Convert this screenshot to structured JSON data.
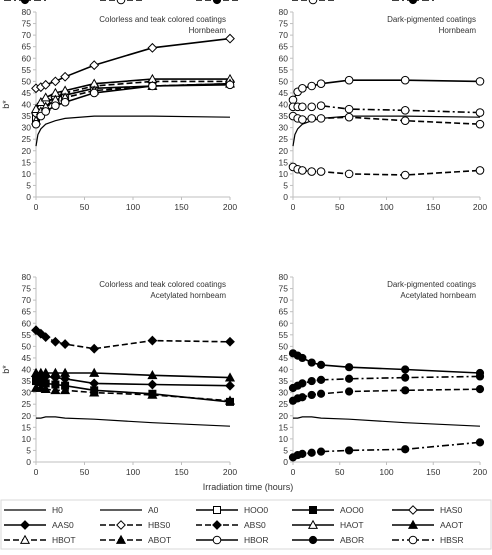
{
  "chart_data": [
    {
      "type": "line",
      "title": "Colorless and teak colored coatings",
      "subtitle": "Hornbeam",
      "ylabel": "b*",
      "xlabel": "",
      "xlim": [
        0,
        200
      ],
      "ylim": [
        0,
        80
      ],
      "x_ticks": [
        0,
        50,
        100,
        150,
        200
      ],
      "y_ticks": [
        0,
        5,
        10,
        15,
        20,
        25,
        30,
        35,
        40,
        45,
        50,
        55,
        60,
        65,
        70,
        75,
        80
      ],
      "series": [
        {
          "name": "H0",
          "x": [
            0,
            2,
            5,
            10,
            20,
            30,
            60,
            120,
            200
          ],
          "values": [
            22,
            27,
            29.5,
            31.5,
            33,
            34,
            35,
            35,
            34.5
          ]
        },
        {
          "name": "HOO0",
          "x": [
            0,
            5,
            10,
            20,
            30,
            60,
            120,
            200
          ],
          "values": [
            34,
            39,
            41,
            43,
            44,
            47,
            48,
            49
          ]
        },
        {
          "name": "HAS0",
          "x": [
            0,
            5,
            10,
            20,
            30,
            60,
            120,
            200
          ],
          "values": [
            47,
            47.5,
            48.5,
            50,
            52,
            57,
            64.5,
            68.5
          ]
        },
        {
          "name": "HBS0",
          "x": [
            0,
            5,
            10,
            20,
            30,
            60,
            120,
            200
          ],
          "values": [
            36,
            39,
            41,
            43,
            45,
            48,
            50,
            50
          ]
        },
        {
          "name": "HAOT",
          "x": [
            0,
            5,
            10,
            20,
            30,
            60,
            120,
            200
          ],
          "values": [
            38,
            41,
            43,
            45,
            46,
            49,
            51,
            51
          ]
        },
        {
          "name": "HBOT",
          "x": [
            0,
            5,
            10,
            20,
            30,
            60,
            120,
            200
          ],
          "values": [
            33,
            37,
            39,
            42,
            43,
            46,
            48,
            49
          ]
        },
        {
          "name": "HBOR",
          "x": [
            0,
            5,
            10,
            20,
            30,
            60,
            120,
            200
          ],
          "values": [
            31.5,
            35,
            37,
            39.5,
            41,
            45,
            48,
            48.5
          ]
        }
      ]
    },
    {
      "type": "line",
      "title": "Dark-pigmented coatings",
      "subtitle": "Hornbeam",
      "ylabel": "",
      "xlabel": "",
      "xlim": [
        0,
        200
      ],
      "ylim": [
        0,
        80
      ],
      "x_ticks": [
        0,
        50,
        100,
        150,
        200
      ],
      "y_ticks": [
        0,
        5,
        10,
        15,
        20,
        25,
        30,
        35,
        40,
        45,
        50,
        55,
        60,
        65,
        70,
        75,
        80
      ],
      "series": [
        {
          "name": "H0",
          "x": [
            0,
            2,
            5,
            10,
            20,
            30,
            60,
            120,
            200
          ],
          "values": [
            22,
            27,
            29.5,
            31.5,
            33,
            34,
            35,
            35,
            34.5
          ]
        },
        {
          "name": "HBOR",
          "x": [
            0,
            5,
            10,
            20,
            30,
            60,
            120,
            200
          ],
          "values": [
            42,
            45.5,
            47,
            48,
            49,
            50.5,
            50.5,
            50
          ]
        },
        {
          "name": "HBSR",
          "x": [
            0,
            5,
            10,
            20,
            30,
            60,
            120,
            200
          ],
          "values": [
            39,
            39,
            39,
            39,
            39.5,
            38,
            37.5,
            36.5
          ]
        },
        {
          "name": "HASU",
          "x": [
            0,
            5,
            10,
            20,
            30,
            60,
            120,
            200
          ],
          "values": [
            35,
            34,
            33.5,
            34,
            34,
            34.5,
            33,
            31.5
          ]
        },
        {
          "name": "HBSP",
          "x": [
            0,
            5,
            10,
            20,
            30,
            60,
            120,
            200
          ],
          "values": [
            13,
            12,
            11.5,
            11,
            11,
            10,
            9.5,
            11.5
          ]
        }
      ]
    },
    {
      "type": "line",
      "title": "Colorless and teak colored coatings",
      "subtitle": "Acetylated hornbeam",
      "ylabel": "b*",
      "xlabel": "",
      "xlim": [
        0,
        200
      ],
      "ylim": [
        0,
        80
      ],
      "x_ticks": [
        0,
        50,
        100,
        150,
        200
      ],
      "y_ticks": [
        0,
        5,
        10,
        15,
        20,
        25,
        30,
        35,
        40,
        45,
        50,
        55,
        60,
        65,
        70,
        75,
        80
      ],
      "series": [
        {
          "name": "A0",
          "x": [
            0,
            5,
            10,
            20,
            30,
            60,
            120,
            200
          ],
          "values": [
            19,
            19,
            19.5,
            19.5,
            19,
            18.5,
            17,
            15.5
          ]
        },
        {
          "name": "ABS0",
          "x": [
            0,
            5,
            10,
            20,
            30,
            60,
            120,
            200
          ],
          "values": [
            57,
            55.5,
            54,
            52,
            51,
            49,
            52.5,
            52
          ]
        },
        {
          "name": "AAOT",
          "x": [
            0,
            5,
            10,
            20,
            30,
            60,
            120,
            200
          ],
          "values": [
            38.5,
            38.5,
            38.5,
            38.5,
            38.5,
            38.5,
            37.5,
            36.5
          ]
        },
        {
          "name": "AAS0",
          "x": [
            0,
            5,
            10,
            20,
            30,
            60,
            120,
            200
          ],
          "values": [
            37,
            37,
            37,
            36.5,
            36,
            34,
            33.5,
            33
          ]
        },
        {
          "name": "AOO0",
          "x": [
            0,
            5,
            10,
            20,
            30,
            60,
            120,
            200
          ],
          "values": [
            35,
            34.5,
            34,
            33.5,
            33,
            31,
            29.5,
            26
          ]
        },
        {
          "name": "ABOT",
          "x": [
            0,
            5,
            10,
            20,
            30,
            60,
            120,
            200
          ],
          "values": [
            32,
            32,
            31.5,
            31,
            31,
            30,
            29,
            26.5
          ]
        }
      ]
    },
    {
      "type": "line",
      "title": "Dark-pigmented coatings",
      "subtitle": "Acetylated hornbeam",
      "ylabel": "",
      "xlabel": "Irradiation time (hours)",
      "xlim": [
        0,
        200
      ],
      "ylim": [
        0,
        80
      ],
      "x_ticks": [
        0,
        50,
        100,
        150,
        200
      ],
      "y_ticks": [
        0,
        5,
        10,
        15,
        20,
        25,
        30,
        35,
        40,
        45,
        50,
        55,
        60,
        65,
        70,
        75,
        80
      ],
      "series": [
        {
          "name": "A0",
          "x": [
            0,
            5,
            10,
            20,
            30,
            60,
            120,
            200
          ],
          "values": [
            19,
            19,
            19.5,
            19.5,
            19,
            18.5,
            17,
            15.5
          ]
        },
        {
          "name": "ABOR",
          "x": [
            0,
            5,
            10,
            20,
            30,
            60,
            120,
            200
          ],
          "values": [
            47,
            46,
            45,
            43,
            42,
            41,
            40,
            38.5
          ]
        },
        {
          "name": "ABSR",
          "x": [
            0,
            5,
            10,
            20,
            30,
            60,
            120,
            200
          ],
          "values": [
            32,
            33,
            34,
            35,
            35.5,
            36,
            36.5,
            37
          ]
        },
        {
          "name": "AASU",
          "x": [
            0,
            5,
            10,
            20,
            30,
            60,
            120,
            200
          ],
          "values": [
            26.5,
            27.5,
            28,
            29,
            29.5,
            30.5,
            31,
            31.5
          ]
        },
        {
          "name": "ABSP",
          "x": [
            0,
            5,
            10,
            20,
            30,
            60,
            120,
            200
          ],
          "values": [
            2,
            3,
            3.5,
            4,
            4.5,
            5,
            5.5,
            8.5
          ]
        }
      ]
    }
  ],
  "legend": [
    {
      "name": "H0",
      "dash": "solid",
      "marker": "none"
    },
    {
      "name": "A0",
      "dash": "solid",
      "marker": "none"
    },
    {
      "name": "HOO0",
      "dash": "solid",
      "marker": "square-open"
    },
    {
      "name": "AOO0",
      "dash": "solid",
      "marker": "square-filled"
    },
    {
      "name": "HAS0",
      "dash": "solid",
      "marker": "diamond-open"
    },
    {
      "name": "AAS0",
      "dash": "solid",
      "marker": "diamond-filled"
    },
    {
      "name": "HBS0",
      "dash": "dashed",
      "marker": "diamond-open"
    },
    {
      "name": "ABS0",
      "dash": "dashed",
      "marker": "diamond-filled"
    },
    {
      "name": "HAOT",
      "dash": "solid",
      "marker": "triangle-open"
    },
    {
      "name": "AAOT",
      "dash": "solid",
      "marker": "triangle-filled"
    },
    {
      "name": "HBOT",
      "dash": "dashed",
      "marker": "triangle-open"
    },
    {
      "name": "ABOT",
      "dash": "dashed",
      "marker": "triangle-filled"
    },
    {
      "name": "HBOR",
      "dash": "solid",
      "marker": "circle-open"
    },
    {
      "name": "ABOR",
      "dash": "solid",
      "marker": "circle-filled"
    },
    {
      "name": "HBSR",
      "dash": "dashdot",
      "marker": "circle-open"
    },
    {
      "name": "ABSR",
      "dash": "dashdot",
      "marker": "circle-filled"
    },
    {
      "name": "HASU",
      "dash": "dashed",
      "marker": "circle-open"
    },
    {
      "name": "AASU",
      "dash": "dashed",
      "marker": "circle-filled"
    },
    {
      "name": "HBSP",
      "dash": "dashed",
      "marker": "circle-open"
    },
    {
      "name": "ABSP",
      "dash": "dashdot",
      "marker": "circle-filled"
    }
  ],
  "colors": {
    "line": "#000000",
    "axis": "#bfbfbf",
    "text": "#333333",
    "frame": "#d9d9d9"
  }
}
